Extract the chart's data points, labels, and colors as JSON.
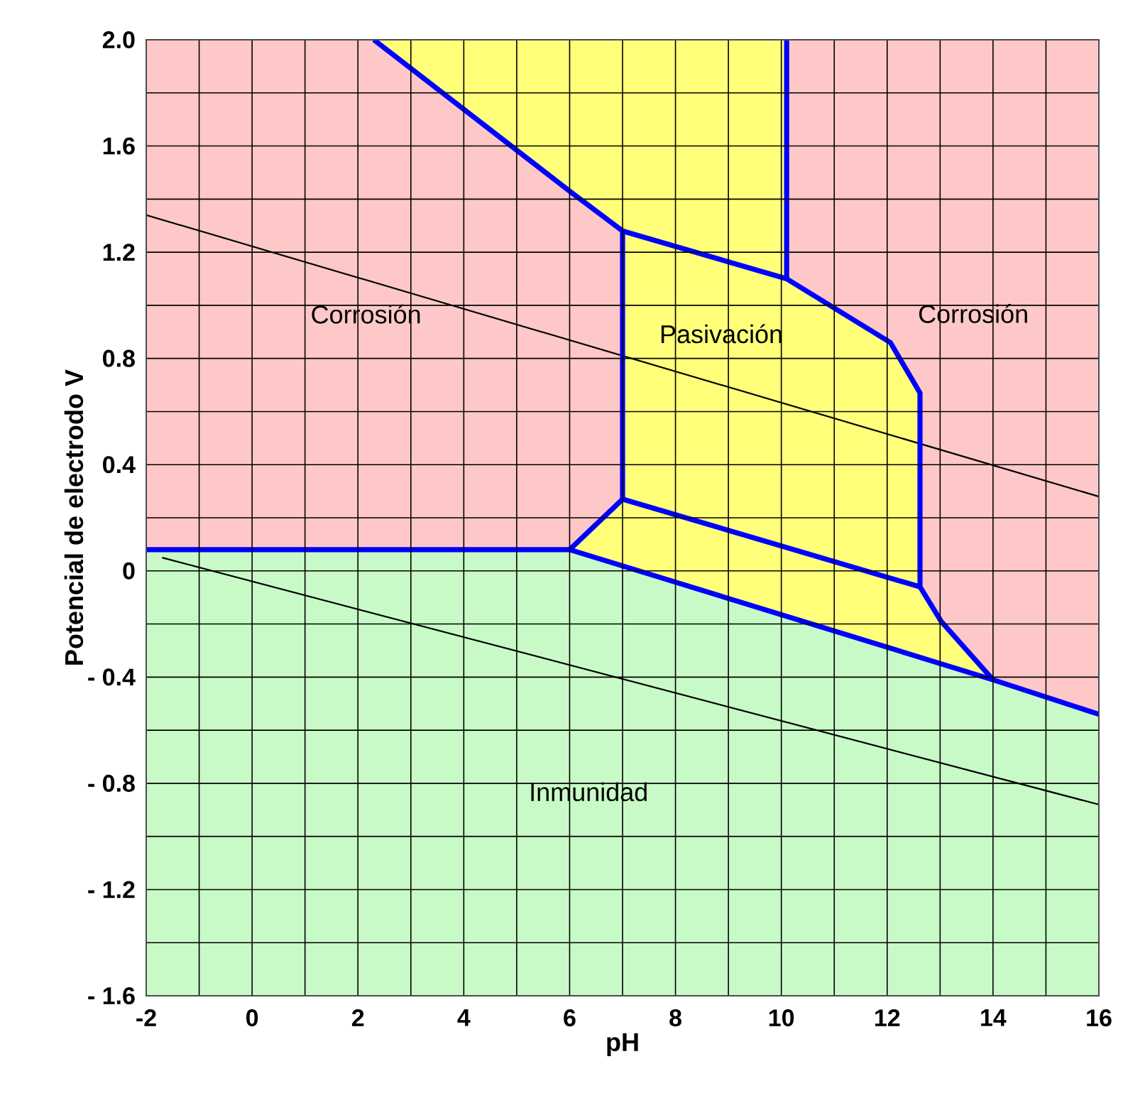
{
  "chart_data": {
    "type": "line",
    "xlabel": "pH",
    "ylabel": "Potencial de electrodo V",
    "xlim": [
      -2,
      16
    ],
    "ylim": [
      -1.6,
      2.0
    ],
    "xticks": [
      -2,
      {
        "value": -1,
        "label": null
      },
      0,
      {
        "value": 1,
        "label": null
      },
      2,
      {
        "value": 3,
        "label": null
      },
      4,
      {
        "value": 5,
        "label": null
      },
      6,
      {
        "value": 7,
        "label": null
      },
      8,
      {
        "value": 9,
        "label": null
      },
      10,
      {
        "value": 11,
        "label": null
      },
      12,
      {
        "value": 13,
        "label": null
      },
      14,
      {
        "value": 15,
        "label": null
      },
      16
    ],
    "yticks": [
      {
        "value": -1.6,
        "label": "- 1.6"
      },
      {
        "value": -1.4,
        "label": null
      },
      {
        "value": -1.2,
        "label": "- 1.2"
      },
      {
        "value": -1.0,
        "label": null
      },
      {
        "value": -0.8,
        "label": "- 0.8"
      },
      {
        "value": -0.6,
        "label": null
      },
      {
        "value": -0.4,
        "label": "- 0.4"
      },
      {
        "value": -0.2,
        "label": null
      },
      0,
      {
        "value": 0.2,
        "label": null
      },
      {
        "value": 0.4,
        "label": "0.4"
      },
      {
        "value": 0.6,
        "label": null
      },
      {
        "value": 0.8,
        "label": "0.8"
      },
      {
        "value": 1.0,
        "label": null
      },
      {
        "value": 1.2,
        "label": "1.2"
      },
      {
        "value": 1.4,
        "label": null
      },
      {
        "value": 1.6,
        "label": "1.6"
      },
      {
        "value": 1.8,
        "label": null
      },
      {
        "value": 2.0,
        "label": "2.0"
      }
    ],
    "grid": true,
    "series": [
      {
        "type": "area",
        "name": "Corrosión",
        "color": "#ffc8c8",
        "x": [
          -2,
          6,
          7,
          7,
          6,
          2.3,
          -2
        ],
        "values": [
          0.08,
          0.08,
          0.27,
          1.28,
          1.43,
          2.0,
          2.0
        ]
      },
      {
        "type": "area",
        "name": "Inmunidad",
        "color": "#c8fac8",
        "x": [
          -2,
          16,
          16,
          14,
          6,
          -2
        ],
        "values": [
          -1.6,
          -1.6,
          -0.54,
          -0.41,
          0.08,
          0.08
        ]
      },
      {
        "type": "area",
        "name": "Pasivación",
        "color": "#ffff7a",
        "x": [
          2.3,
          10.1,
          10.1,
          12.06,
          12.62,
          12.62,
          13.02,
          14,
          6,
          7,
          7,
          6
        ],
        "values": [
          2.0,
          2.0,
          1.1,
          0.86,
          0.67,
          -0.06,
          -0.19,
          -0.41,
          0.08,
          0.27,
          1.28,
          1.43
        ]
      },
      {
        "type": "area",
        "name": "Corrosión",
        "color": "#ffc8c8",
        "x": [
          10.1,
          16,
          16,
          14,
          13.02,
          12.62,
          12.62,
          12.06,
          10.1
        ],
        "values": [
          2.0,
          2.0,
          -0.54,
          -0.41,
          -0.19,
          -0.06,
          0.67,
          0.86,
          1.1
        ]
      },
      {
        "color": "#000000",
        "x": [
          -2,
          16
        ],
        "values": [
          1.34,
          0.28
        ]
      },
      {
        "color": "#000000",
        "x": [
          -1.7,
          16
        ],
        "values": [
          0.05,
          -0.88
        ]
      },
      {
        "color": "#0000ff",
        "x": [
          -2,
          6,
          14,
          16
        ],
        "values": [
          0.08,
          0.08,
          -0.41,
          -0.54
        ]
      },
      {
        "color": "#0000ff",
        "x": [
          2.3,
          6,
          7,
          7,
          6
        ],
        "values": [
          2.0,
          1.43,
          1.28,
          0.27,
          0.08
        ]
      },
      {
        "color": "#0000ff",
        "x": [
          7,
          10.1,
          12.06,
          12.62,
          12.62,
          13.02,
          14
        ],
        "values": [
          1.28,
          1.1,
          0.86,
          0.67,
          -0.06,
          -0.19,
          -0.41
        ]
      },
      {
        "color": "#0000ff",
        "x": [
          10.1,
          10.1
        ],
        "values": [
          1.1,
          2.0
        ]
      },
      {
        "color": "#0000ff",
        "x": [
          7,
          12.62
        ],
        "values": [
          0.27,
          -0.06
        ]
      }
    ]
  }
}
